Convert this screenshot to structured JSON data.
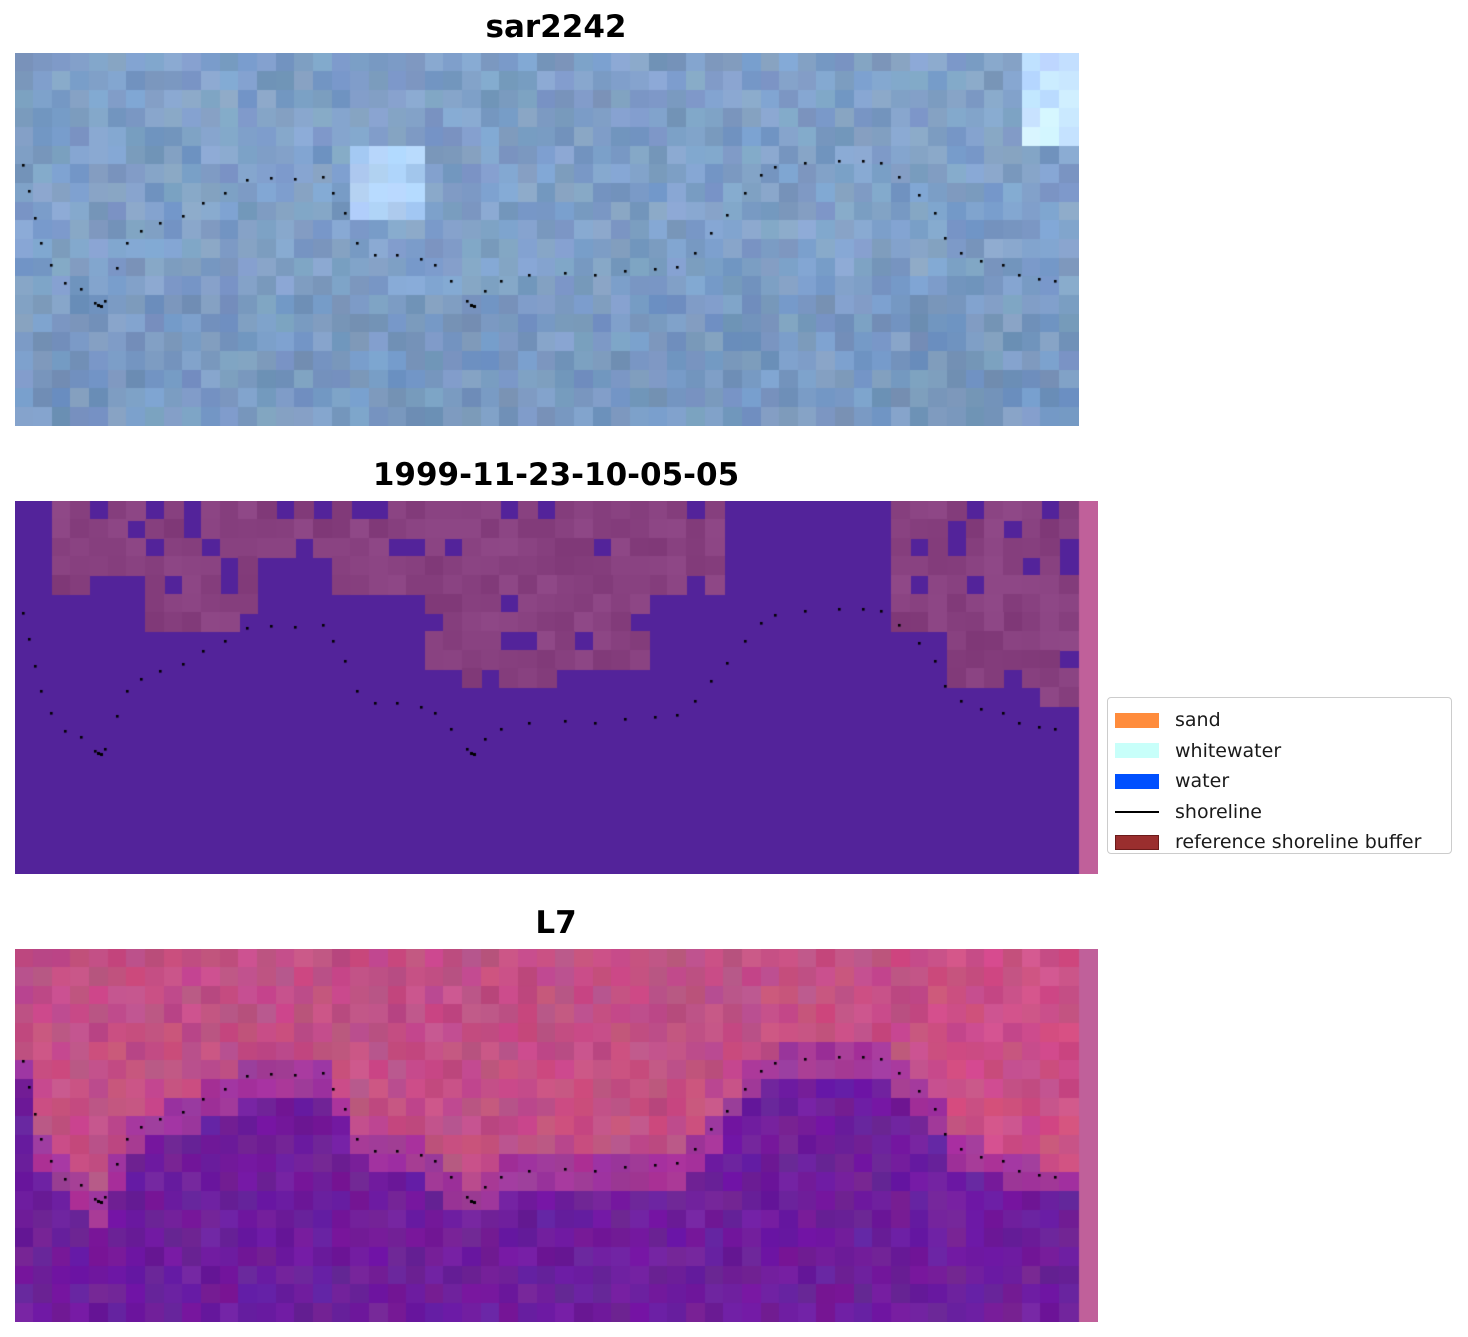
{
  "panels": [
    {
      "id": "sar",
      "title": "sar2242"
    },
    {
      "id": "classified",
      "title": "1999-11-23-10-05-05"
    },
    {
      "id": "landsat",
      "title": "L7"
    }
  ],
  "legend": {
    "items": [
      {
        "label": "sand",
        "color": "#ff8c3c",
        "kind": "patch"
      },
      {
        "label": "whitewater",
        "color": "#c8fffa",
        "kind": "patch"
      },
      {
        "label": "water",
        "color": "#0050ff",
        "kind": "patch"
      },
      {
        "label": "shoreline",
        "color": "#000000",
        "kind": "line"
      },
      {
        "label": "reference shoreline buffer",
        "color": "#9a2e2e",
        "kind": "patch"
      }
    ]
  },
  "colors": {
    "sar_base": "#7f9fc7",
    "classified_water": "#53239a",
    "classified_land": "#87407f",
    "buffer_strip": "#c0609a",
    "l7_land": "#c24f86",
    "l7_water": "#6e1e9c",
    "shoreline": "#000000"
  }
}
